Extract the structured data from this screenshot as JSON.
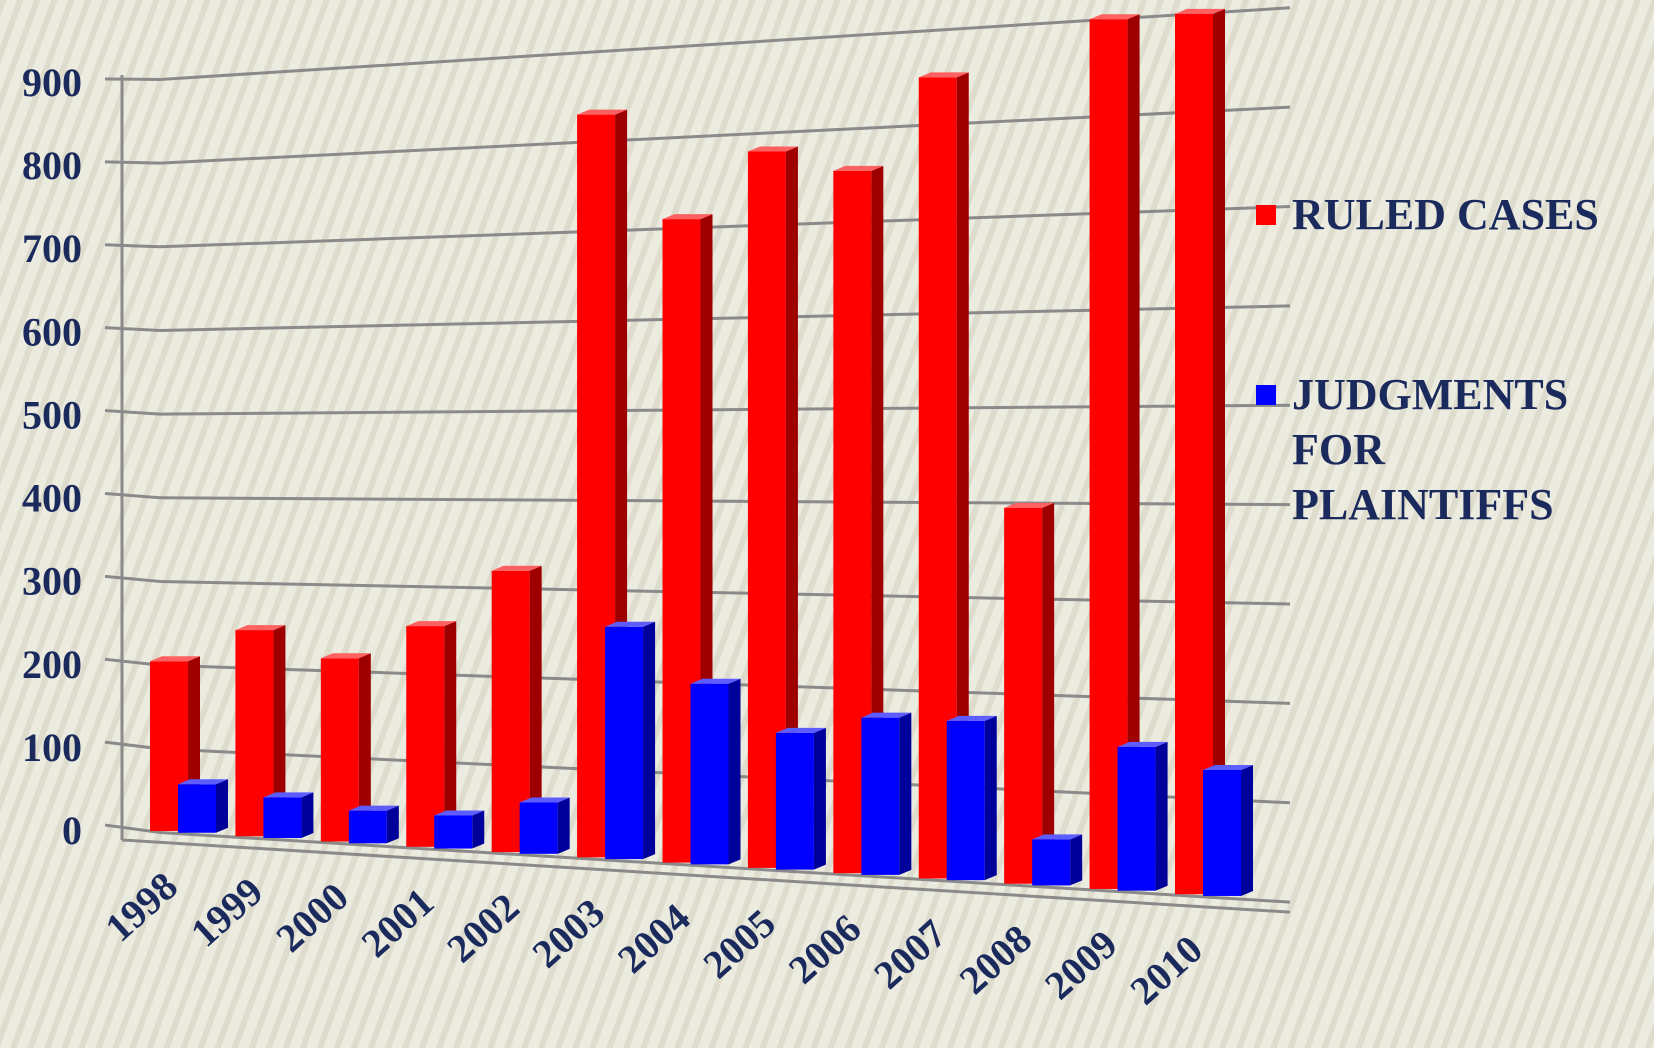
{
  "chart_data": {
    "type": "bar",
    "title": "",
    "xlabel": "",
    "ylabel": "",
    "ylim": [
      0,
      900
    ],
    "yticks": [
      0,
      100,
      200,
      300,
      400,
      500,
      600,
      700,
      800,
      900
    ],
    "categories": [
      "1998",
      "1999",
      "2000",
      "2001",
      "2002",
      "2003",
      "2004",
      "2005",
      "2006",
      "2007",
      "2008",
      "2009",
      "2010"
    ],
    "series": [
      {
        "name": "RULED CASES",
        "color": "#ff0000",
        "values": [
          205,
          245,
          215,
          255,
          320,
          830,
          710,
          780,
          755,
          850,
          395,
          900,
          900
        ]
      },
      {
        "name": "JUDGMENTS FOR PLAINTIFFS",
        "color": "#0000ff",
        "values": [
          60,
          50,
          40,
          40,
          60,
          260,
          200,
          150,
          170,
          170,
          50,
          150,
          130
        ]
      }
    ],
    "grid": true,
    "view": "3d",
    "legend": "right",
    "legend_lines": [
      [
        "RULED CASES"
      ],
      [
        "JUDGMENTS",
        "FOR",
        "PLAINTIFFS"
      ]
    ]
  }
}
